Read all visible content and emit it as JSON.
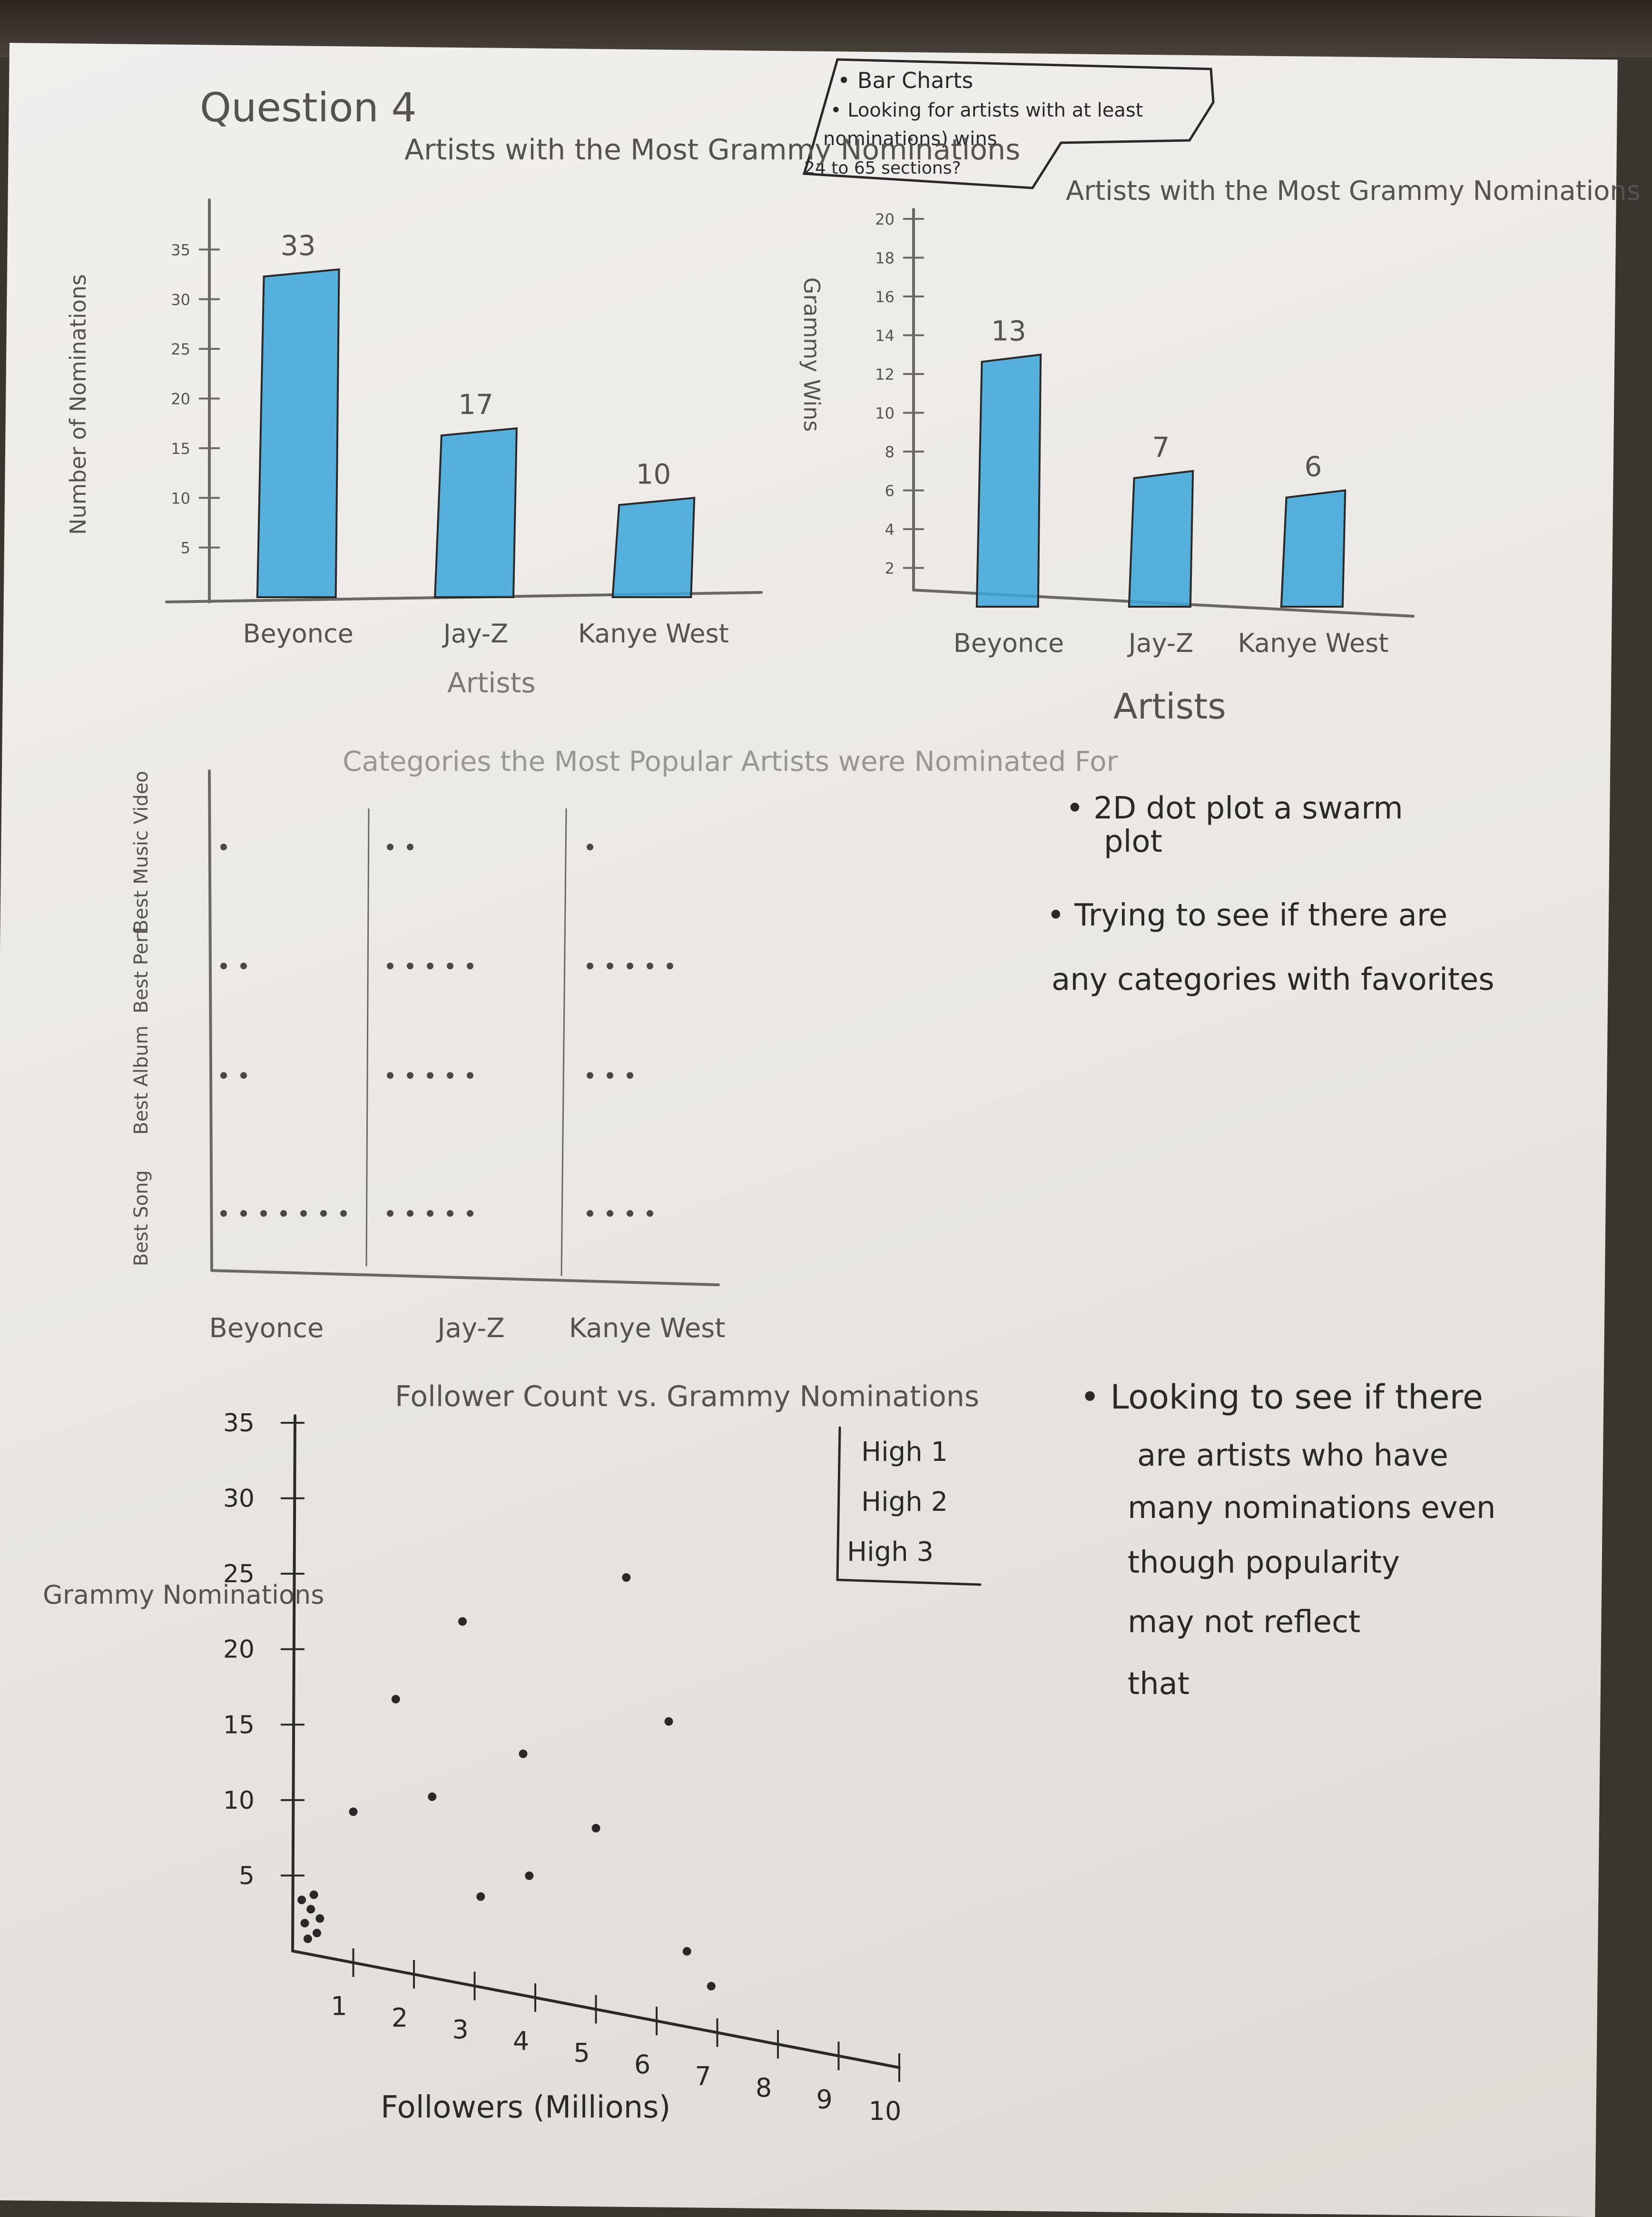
{
  "page": {
    "title": "Question 4",
    "box_lines": [
      "• Bar Charts",
      "• Looking for artists with at least",
      "nominations) wins",
      "24 to 65 sections?"
    ]
  },
  "notes": {
    "swarm": [
      "• 2D dot plot a swarm",
      "plot",
      "• Trying to see if there are",
      "any categories with favorites"
    ],
    "scatter": [
      "• Looking to see if there",
      "are artists who have",
      "many nominations even",
      "though popularity",
      "may not reflect",
      "that"
    ]
  },
  "colors": {
    "bar": "#3aa6d8",
    "pencil": "#6b6864",
    "ink": "#2b2927",
    "paper": "#efece8"
  },
  "chart_data": [
    {
      "type": "bar",
      "title": "Artists with the Most Grammy Nominations",
      "categories": [
        "Beyonce",
        "Jay-Z",
        "Kanye West"
      ],
      "values": [
        33,
        17,
        10
      ],
      "data_labels": [
        "33",
        "17",
        "10"
      ],
      "ylabel": "Number of Nominations",
      "xlabel": "Artists",
      "yticks": [
        "5",
        "10",
        "15",
        "20",
        "25",
        "30",
        "35"
      ],
      "ylim": [
        0,
        40
      ]
    },
    {
      "type": "bar",
      "title": "Artists with the Most Grammy Nominations",
      "categories": [
        "Beyonce",
        "Jay-Z",
        "Kanye West"
      ],
      "values": [
        13,
        7,
        6
      ],
      "data_labels": [
        "13",
        "7",
        "6"
      ],
      "ylabel": "Grammy Wins",
      "xlabel": "Artists",
      "yticks": [
        "2",
        "4",
        "6",
        "8",
        "10",
        "12",
        "14",
        "16",
        "18",
        "20"
      ],
      "ylim": [
        0,
        20
      ]
    },
    {
      "type": "scatter",
      "title": "Categories the Most Popular Artists were Nominated For",
      "categories": [
        "Beyonce",
        "Jay-Z",
        "Kanye West"
      ],
      "rows": [
        "Best Song",
        "Best Album",
        "Best Perf",
        "Best Music Video"
      ],
      "counts": {
        "Beyonce": [
          7,
          2,
          2,
          1
        ],
        "Jay-Z": [
          5,
          5,
          5,
          2
        ],
        "Kanye West": [
          4,
          3,
          5,
          1
        ]
      }
    },
    {
      "type": "scatter",
      "title": "Follower Count vs. Grammy Nominations",
      "xlabel": "Followers (Millions)",
      "ylabel": "Grammy Nominations",
      "xticks": [
        "1",
        "2",
        "3",
        "4",
        "5",
        "6",
        "7",
        "8",
        "9",
        "10"
      ],
      "yticks": [
        "5",
        "10",
        "15",
        "20",
        "25",
        "30",
        "35"
      ],
      "xlim": [
        0,
        10
      ],
      "ylim": [
        0,
        35
      ],
      "legend": [
        "High 1",
        "High 2",
        "High 3"
      ],
      "legend_position": "top-right",
      "points": [
        {
          "x": 0.2,
          "y": 2
        },
        {
          "x": 0.3,
          "y": 3
        },
        {
          "x": 0.4,
          "y": 1.5
        },
        {
          "x": 0.25,
          "y": 1
        },
        {
          "x": 0.45,
          "y": 2.5
        },
        {
          "x": 0.35,
          "y": 4
        },
        {
          "x": 0.15,
          "y": 3.5
        },
        {
          "x": 1,
          "y": 10
        },
        {
          "x": 1.7,
          "y": 18
        },
        {
          "x": 2.3,
          "y": 12
        },
        {
          "x": 2.8,
          "y": 24
        },
        {
          "x": 3.1,
          "y": 6
        },
        {
          "x": 3.8,
          "y": 16
        },
        {
          "x": 3.9,
          "y": 8
        },
        {
          "x": 5,
          "y": 12
        },
        {
          "x": 5.5,
          "y": 29
        },
        {
          "x": 6.2,
          "y": 20
        },
        {
          "x": 6.5,
          "y": 5
        },
        {
          "x": 6.9,
          "y": 3
        }
      ]
    }
  ]
}
